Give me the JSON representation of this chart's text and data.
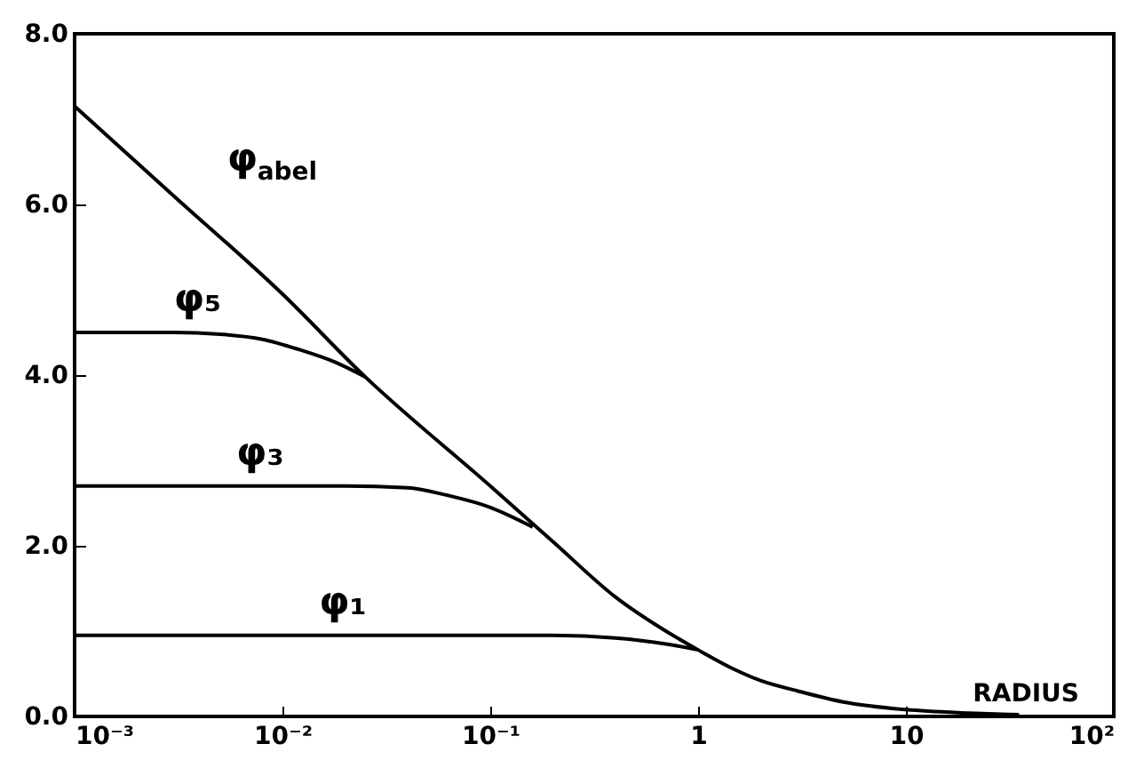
{
  "chart_data": {
    "type": "line",
    "xlabel": "RADIUS",
    "log": "x",
    "xlim": [
      0.001,
      100
    ],
    "ylim": [
      0,
      8
    ],
    "xticks": [
      {
        "value": 0.001,
        "label": "10⁻³"
      },
      {
        "value": 0.01,
        "label": "10⁻²"
      },
      {
        "value": 0.1,
        "label": "10⁻¹"
      },
      1,
      10,
      {
        "value": 100,
        "label": "10²"
      }
    ],
    "yticks": [
      {
        "value": 0,
        "label": "0.0"
      },
      {
        "value": 2,
        "label": "2.0"
      },
      {
        "value": 4,
        "label": "4.0"
      },
      {
        "value": 6,
        "label": "6.0"
      },
      {
        "value": 8,
        "label": "8.0"
      }
    ],
    "marker": "none",
    "line_style": "solid",
    "series": [
      {
        "name": "φ$_{abel}$",
        "color": "#000000",
        "x": [
          0.001,
          0.003,
          0.01,
          0.025,
          0.1,
          0.2,
          0.4,
          0.7,
          1,
          1.5,
          2,
          3,
          5,
          10,
          20,
          35
        ],
        "values": [
          7.15,
          6.1,
          4.95,
          3.98,
          2.7,
          2.05,
          1.4,
          1.0,
          0.78,
          0.55,
          0.42,
          0.3,
          0.17,
          0.08,
          0.04,
          0.02
        ]
      },
      {
        "name": "φ₅",
        "color": "#000000",
        "x": [
          0.001,
          0.003,
          0.005,
          0.008,
          0.012,
          0.018,
          0.025
        ],
        "values": [
          4.5,
          4.5,
          4.48,
          4.42,
          4.3,
          4.15,
          3.98
        ]
      },
      {
        "name": "φ₃",
        "color": "#000000",
        "x": [
          0.001,
          0.006,
          0.02,
          0.04,
          0.06,
          0.1,
          0.16
        ],
        "values": [
          2.7,
          2.7,
          2.7,
          2.68,
          2.6,
          2.45,
          2.22
        ]
      },
      {
        "name": "φ₁",
        "color": "#000000",
        "x": [
          0.001,
          0.015,
          0.1,
          0.2,
          0.4,
          0.7,
          1
        ],
        "values": [
          0.95,
          0.95,
          0.95,
          0.95,
          0.92,
          0.85,
          0.78
        ]
      }
    ]
  }
}
